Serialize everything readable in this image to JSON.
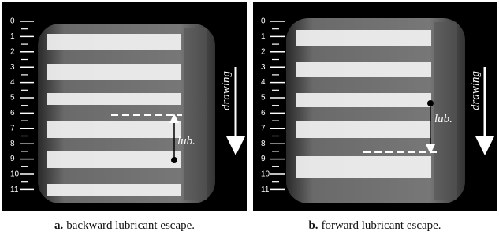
{
  "panels": [
    {
      "ruler": [
        0,
        1,
        2,
        3,
        4,
        5,
        6,
        7,
        8,
        9,
        10,
        11
      ],
      "direction": "drawing",
      "annotation": "lub.",
      "caption": {
        "label": "a.",
        "text": "backward lubricant escape."
      }
    },
    {
      "ruler": [
        0,
        1,
        2,
        3,
        4,
        5,
        6,
        7,
        8,
        9,
        10,
        11
      ],
      "direction": "drawing",
      "annotation": "lub.",
      "caption": {
        "label": "b.",
        "text": "forward lubricant escape."
      }
    }
  ]
}
